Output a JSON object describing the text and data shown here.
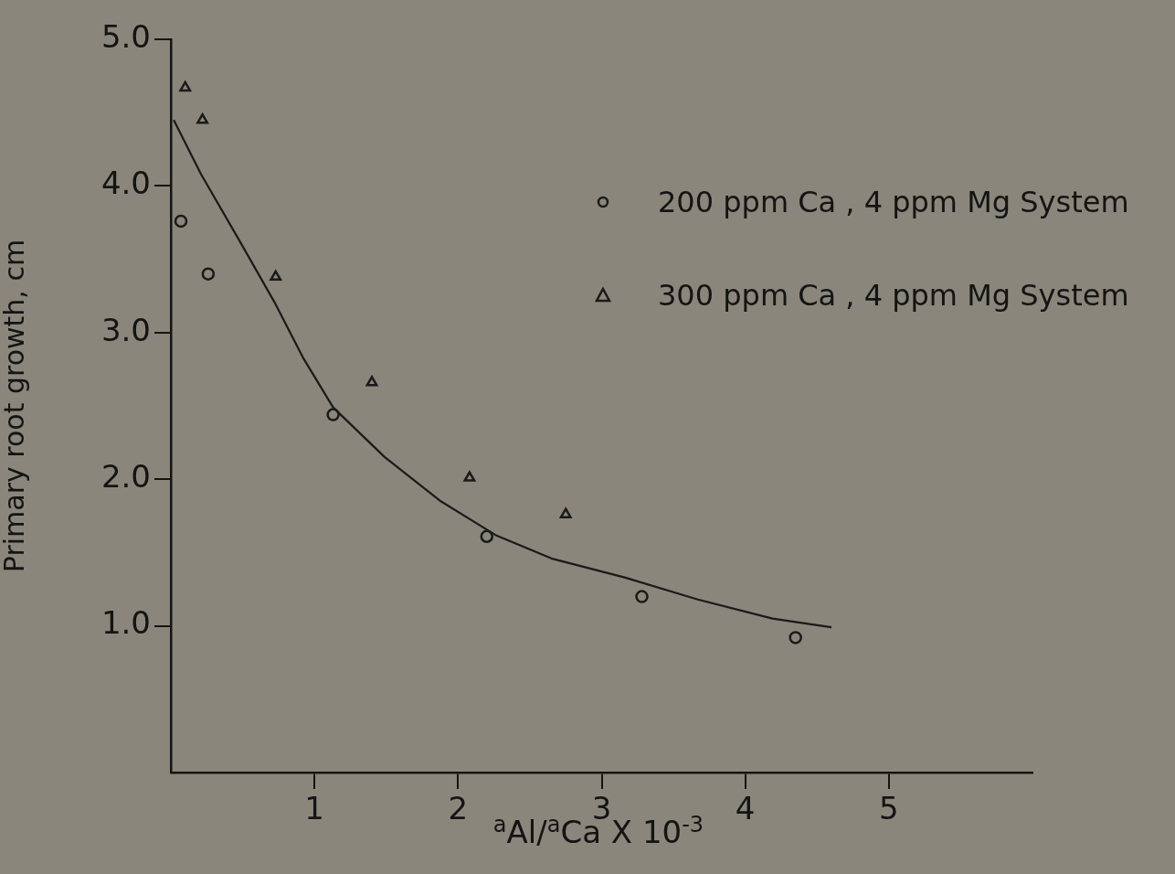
{
  "chart_data": {
    "type": "scatter",
    "xlabel": "$^{a}$Al/$^{a}$Ca X 10$^{-3}$",
    "ylabel": "Primary root growth, cm",
    "xlim": [
      0,
      6
    ],
    "xticks": [
      1,
      2,
      3,
      4,
      5
    ],
    "ylim": [
      0,
      5
    ],
    "yticks": [
      {
        "value": 1,
        "label": "1.0"
      },
      {
        "value": 2,
        "label": "2.0"
      },
      {
        "value": 3,
        "label": "3.0"
      },
      {
        "value": 4,
        "label": "4.0"
      },
      {
        "value": 5,
        "label": "5.0"
      }
    ],
    "grid": false,
    "legend": "right",
    "series": [
      {
        "name": "200 ppm Ca , 4 ppm Mg System",
        "color": "#1a1a1a",
        "marker": "circle",
        "x": [
          0.07,
          0.26,
          1.13,
          2.2,
          3.28,
          4.35
        ],
        "values": [
          3.76,
          3.4,
          2.44,
          1.61,
          1.2,
          0.92
        ]
      },
      {
        "name": "300 ppm Ca , 4 ppm Mg System",
        "color": "#1a1a1a",
        "marker": "triangle",
        "x": [
          0.1,
          0.22,
          0.73,
          1.4,
          2.08,
          2.75
        ],
        "values": [
          4.67,
          4.45,
          3.38,
          2.66,
          2.01,
          1.76
        ]
      },
      {
        "type": "line",
        "color": "#1a1a1a",
        "marker": "none",
        "x": [
          0.02,
          0.21,
          0.47,
          0.72,
          0.92,
          1.13,
          1.49,
          1.88,
          2.26,
          2.65,
          3.16,
          3.67,
          4.19,
          4.6
        ],
        "values": [
          4.45,
          4.08,
          3.64,
          3.21,
          2.83,
          2.49,
          2.15,
          1.85,
          1.62,
          1.46,
          1.33,
          1.18,
          1.05,
          0.99
        ]
      }
    ]
  }
}
